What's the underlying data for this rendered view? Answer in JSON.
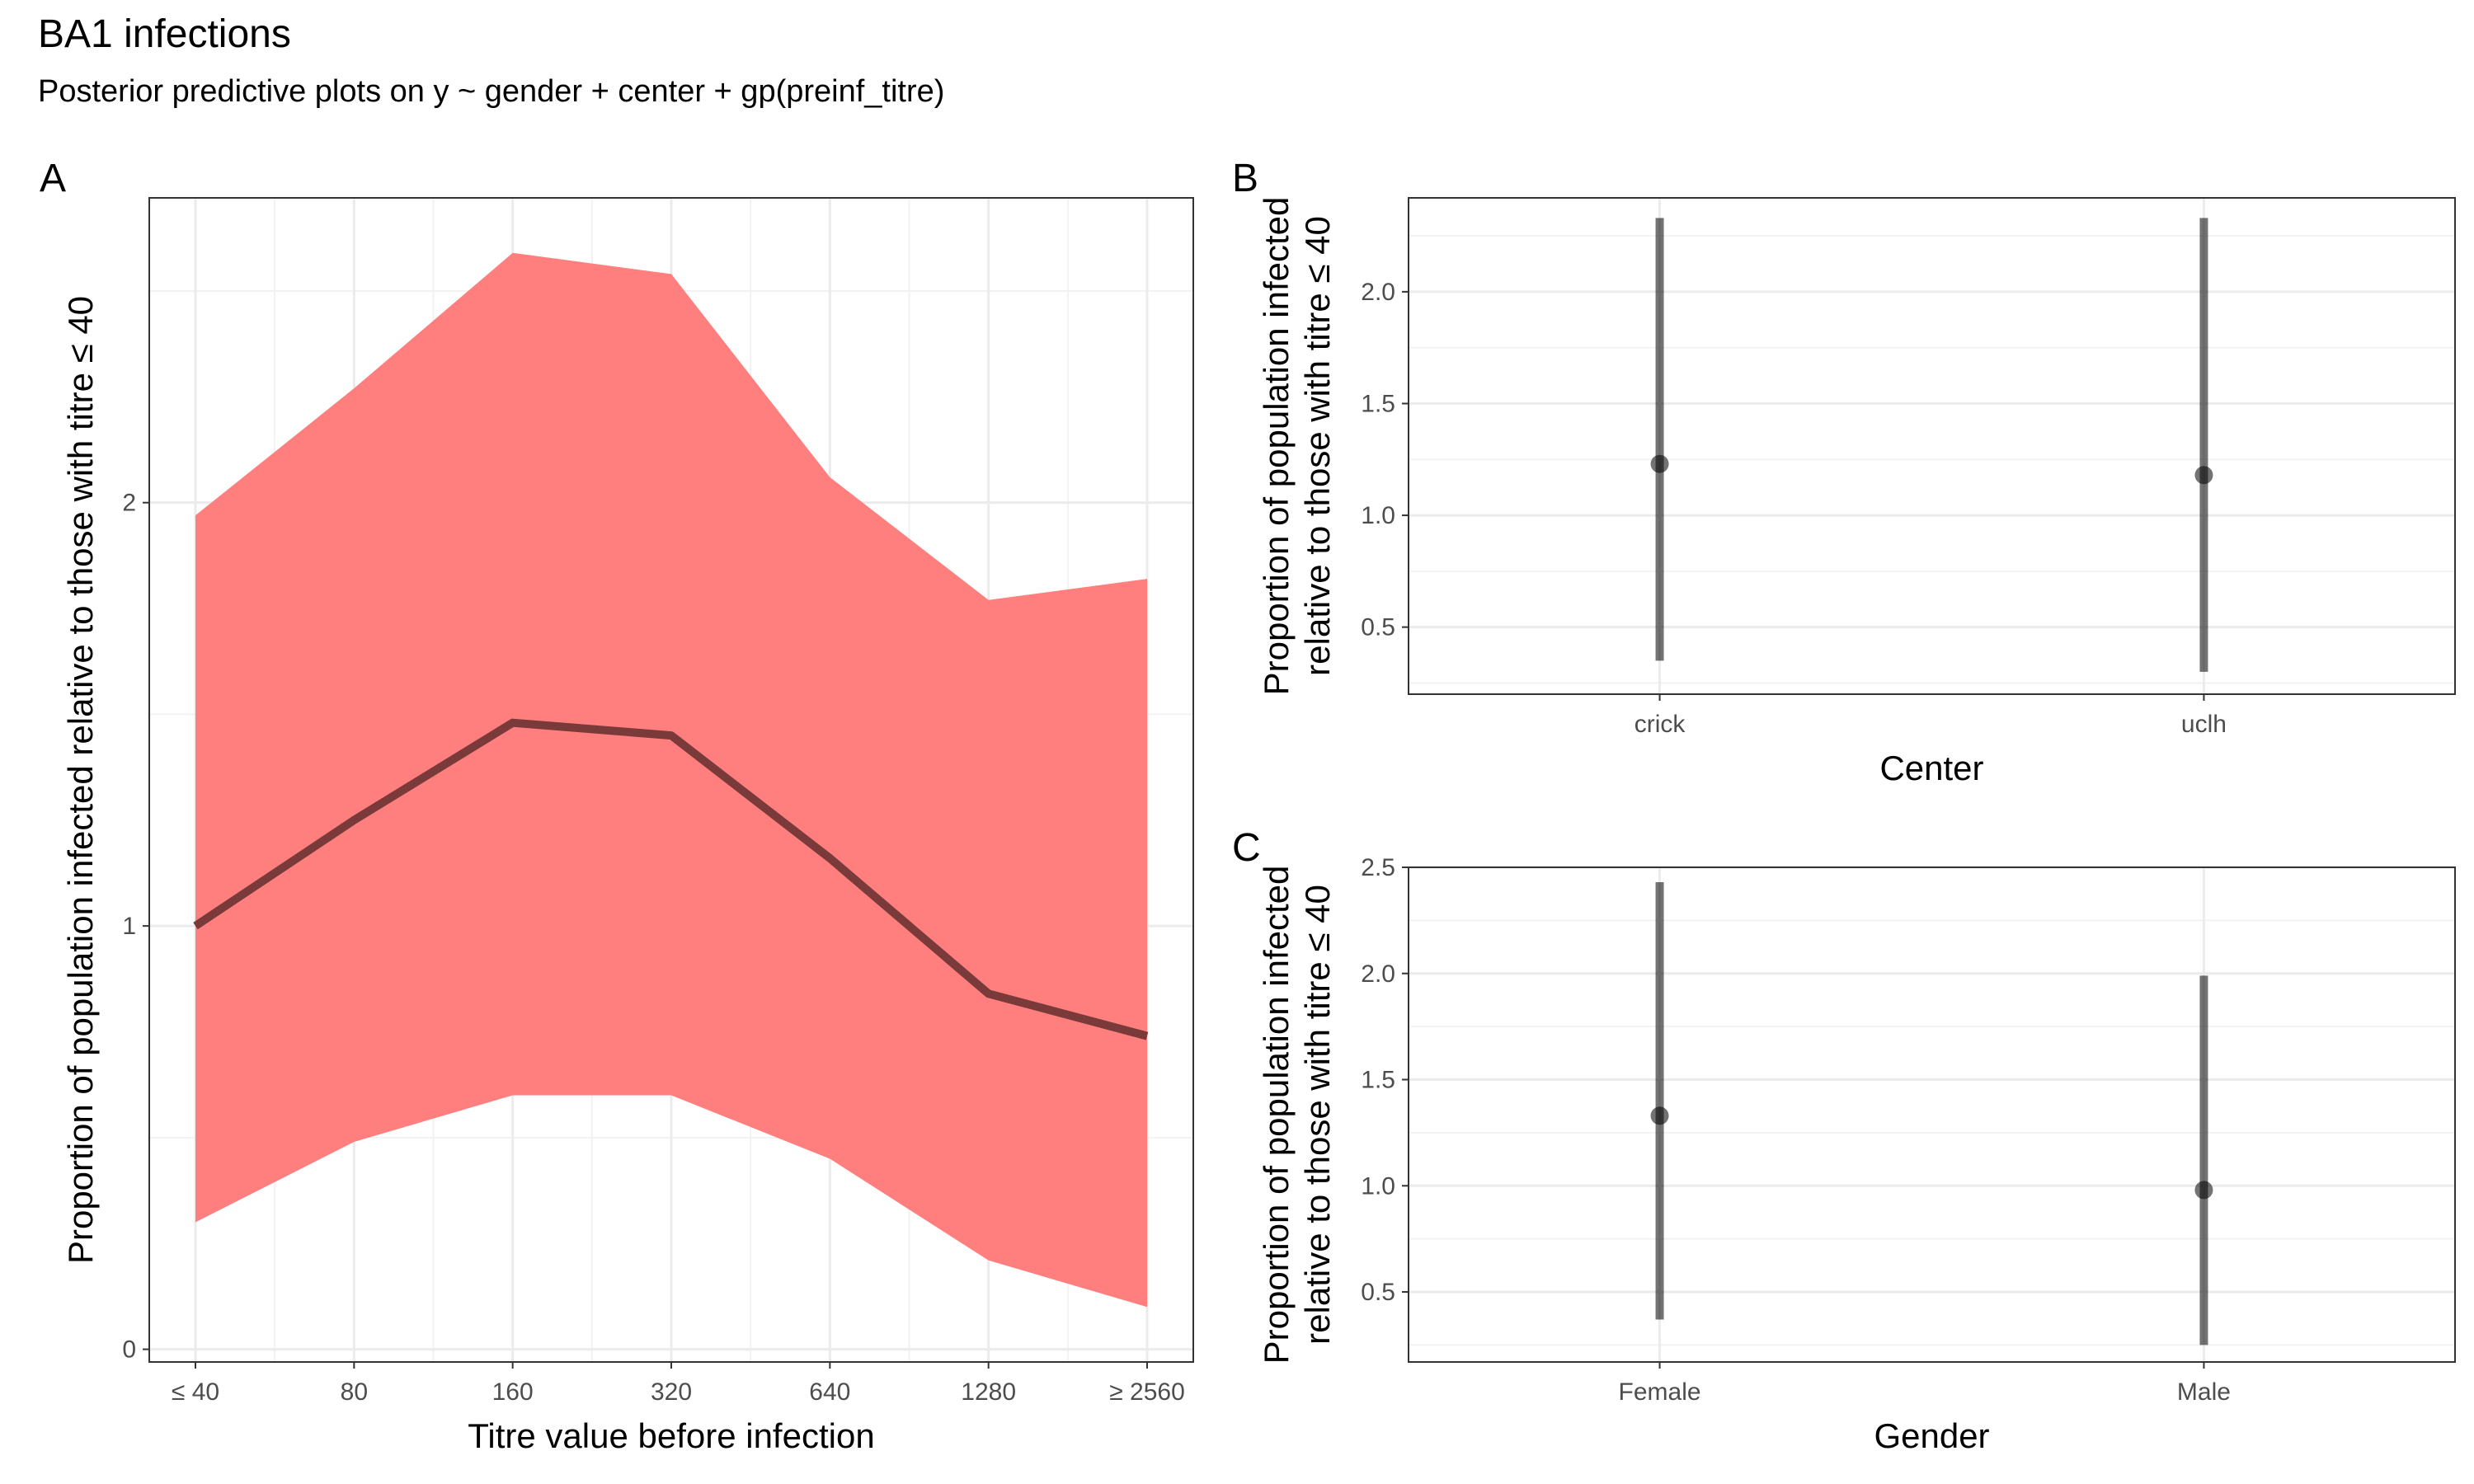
{
  "title": "BA1 infections",
  "subtitle": "Posterior predictive plots on y ~ gender + center + gp(preinf_titre)",
  "chart_data": [
    {
      "panel": "A",
      "type": "line",
      "xlabel": "Titre value before infection",
      "ylabel": "Proportion of population infected relative to those with titre ≤ 40",
      "categories": [
        "≤ 40",
        "80",
        "160",
        "320",
        "640",
        "1280",
        "≥ 2560"
      ],
      "yticks": [
        0,
        1,
        2
      ],
      "ylim": [
        -0.03,
        2.72
      ],
      "median": [
        1.0,
        1.25,
        1.48,
        1.45,
        1.16,
        0.84,
        0.74
      ],
      "lower": [
        0.3,
        0.49,
        0.6,
        0.6,
        0.45,
        0.21,
        0.1
      ],
      "upper": [
        1.97,
        2.27,
        2.59,
        2.54,
        2.06,
        1.77,
        1.82
      ],
      "band_color": "#ff7f7f",
      "line_color": "#7a3a3a",
      "grid": true
    },
    {
      "panel": "B",
      "type": "scatter",
      "xlabel": "Center",
      "ylabel": "Proportion of population infected relative to those with titre ≤ 40",
      "categories": [
        "crick",
        "uclh"
      ],
      "yticks": [
        0.5,
        1.0,
        1.5,
        2.0
      ],
      "ytick_labels": [
        "0.5",
        "1.0",
        "1.5",
        "2.0"
      ],
      "ylim": [
        0.2,
        2.42
      ],
      "estimate": [
        1.23,
        1.18
      ],
      "lower": [
        0.35,
        0.3
      ],
      "upper": [
        2.33,
        2.33
      ],
      "grid": true
    },
    {
      "panel": "C",
      "type": "scatter",
      "xlabel": "Gender",
      "ylabel": "Proportion of population infected relative to those with titre ≤ 40",
      "categories": [
        "Female",
        "Male"
      ],
      "yticks": [
        0.5,
        1.0,
        1.5,
        2.0,
        2.5
      ],
      "ytick_labels": [
        "0.5",
        "1.0",
        "1.5",
        "2.0",
        "2.5"
      ],
      "ylim": [
        0.17,
        2.5
      ],
      "estimate": [
        1.33,
        0.98
      ],
      "lower": [
        0.37,
        0.25
      ],
      "upper": [
        2.43,
        1.99
      ],
      "grid": true
    }
  ]
}
